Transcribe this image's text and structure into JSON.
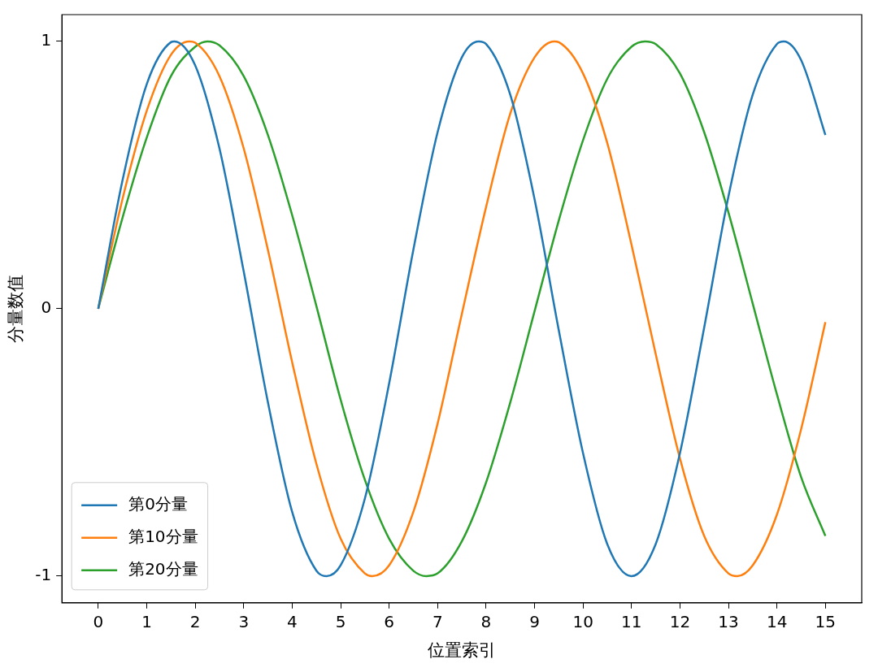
{
  "chart_data": {
    "type": "line",
    "xlabel": "位置索引",
    "ylabel": "分量数值",
    "xlim": [
      -0.75,
      15.75
    ],
    "ylim": [
      -1.1,
      1.1
    ],
    "xticks": [
      0,
      1,
      2,
      3,
      4,
      5,
      6,
      7,
      8,
      9,
      10,
      11,
      12,
      13,
      14,
      15
    ],
    "yticks": [
      -1,
      0,
      1
    ],
    "grid": false,
    "legend": "bottom left",
    "marker": "none",
    "line_style": "solid",
    "series": [
      {
        "name": "第0分量",
        "color": "#1f77b4",
        "x": [
          0,
          0.5,
          1,
          1.5,
          1.57,
          2,
          2.5,
          3,
          3.5,
          4,
          4.5,
          4.71,
          5,
          5.5,
          6,
          6.5,
          7,
          7.5,
          7.85,
          8,
          8.5,
          9,
          9.5,
          10,
          10.5,
          11,
          11.5,
          12,
          12.5,
          13,
          13.5,
          14,
          14.14,
          14.5,
          15
        ],
        "values": [
          0,
          0.48,
          0.84,
          0.997,
          1,
          0.91,
          0.6,
          0.14,
          -0.35,
          -0.76,
          -0.98,
          -1,
          -0.96,
          -0.71,
          -0.28,
          0.22,
          0.66,
          0.94,
          1,
          0.99,
          0.8,
          0.41,
          -0.08,
          -0.54,
          -0.88,
          -1,
          -0.88,
          -0.54,
          -0.07,
          0.42,
          0.8,
          0.99,
          1,
          0.93,
          0.65
        ]
      },
      {
        "name": "第10分量",
        "color": "#ff7f0e",
        "x": [
          0,
          0.5,
          1,
          1.5,
          1.88,
          2,
          2.5,
          3,
          3.5,
          4,
          4.5,
          5,
          5.5,
          5.65,
          6,
          6.5,
          7,
          7.5,
          8,
          8.5,
          9,
          9.41,
          9.5,
          10,
          10.5,
          11,
          11.5,
          12,
          12.5,
          13,
          13.18,
          13.5,
          14,
          14.5,
          15
        ],
        "values": [
          0,
          0.41,
          0.74,
          0.95,
          1,
          0.995,
          0.87,
          0.6,
          0.22,
          -0.2,
          -0.58,
          -0.86,
          -0.99,
          -1,
          -0.96,
          -0.76,
          -0.43,
          -0.02,
          0.38,
          0.73,
          0.94,
          1,
          0.997,
          0.88,
          0.62,
          0.24,
          -0.17,
          -0.56,
          -0.85,
          -0.99,
          -1,
          -0.96,
          -0.77,
          -0.45,
          -0.05
        ]
      },
      {
        "name": "第20分量",
        "color": "#2ca02c",
        "x": [
          0,
          0.5,
          1,
          1.5,
          2,
          2.25,
          2.5,
          3,
          3.5,
          4,
          4.5,
          5,
          5.5,
          6,
          6.5,
          6.77,
          7,
          7.5,
          8,
          8.5,
          9,
          9.5,
          10,
          10.5,
          11,
          11.28,
          11.5,
          12,
          12.5,
          13,
          13.5,
          14,
          14.5,
          15
        ],
        "values": [
          0,
          0.34,
          0.64,
          0.87,
          0.98,
          1,
          0.985,
          0.87,
          0.65,
          0.35,
          0.01,
          -0.34,
          -0.64,
          -0.86,
          -0.98,
          -1,
          -0.99,
          -0.87,
          -0.65,
          -0.35,
          -0.01,
          0.33,
          0.63,
          0.86,
          0.98,
          1,
          0.99,
          0.88,
          0.66,
          0.36,
          0.02,
          -0.32,
          -0.63,
          -0.85
        ]
      }
    ]
  }
}
